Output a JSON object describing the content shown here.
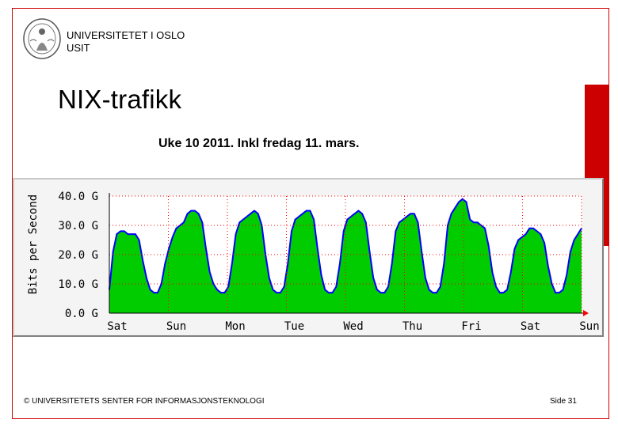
{
  "header": {
    "org_line1": "UNIVERSITETET I OSLO",
    "org_line2": "USIT"
  },
  "slide": {
    "title": "NIX-trafikk",
    "subtitle": "Uke 10 2011. Inkl fredag 11. mars."
  },
  "footer": {
    "copyright": "© UNIVERSITETETS SENTER FOR INFORMASJONSTEKNOLOGI",
    "page": "Side 31"
  },
  "colors": {
    "fill": "#00cc00",
    "line": "#0000ff",
    "peak": "#ff00ff",
    "grid": "#ff0000",
    "frame": "#cc0000"
  },
  "chart_data": {
    "type": "area",
    "title": "",
    "ylabel": "Bits per Second",
    "ylim": [
      0,
      40
    ],
    "yticks": [
      "0.0 G",
      "10.0 G",
      "20.0 G",
      "30.0 G",
      "40.0 G"
    ],
    "xticks": [
      "Sat",
      "Sun",
      "Mon",
      "Tue",
      "Wed",
      "Thu",
      "Fri",
      "Sat",
      "Sun"
    ],
    "grid": true,
    "series": [
      {
        "values_gbps": [
          8,
          21,
          27,
          28,
          28,
          27,
          27,
          27,
          25,
          18,
          12,
          8,
          7,
          7,
          10,
          17,
          22,
          26,
          29,
          30,
          31,
          34,
          35,
          35,
          34,
          31,
          22,
          14,
          10,
          8,
          7,
          7,
          9,
          17,
          27,
          31,
          32,
          33,
          34,
          35,
          34,
          30,
          20,
          12,
          8,
          7,
          7,
          9,
          17,
          28,
          32,
          33,
          34,
          35,
          35,
          32,
          22,
          13,
          8,
          7,
          7,
          9,
          17,
          28,
          32,
          33,
          34,
          35,
          34,
          31,
          21,
          12,
          8,
          7,
          7,
          9,
          17,
          28,
          31,
          32,
          33,
          34,
          34,
          31,
          21,
          12,
          8,
          7,
          7,
          9,
          17,
          30,
          34,
          36,
          38,
          39,
          38,
          32,
          31,
          31,
          30,
          29,
          23,
          14,
          9,
          7,
          7,
          8,
          14,
          22,
          25,
          26,
          27,
          29,
          29,
          28,
          27,
          24,
          16,
          10,
          7,
          7,
          8,
          13,
          21,
          25,
          27,
          29
        ]
      }
    ]
  }
}
